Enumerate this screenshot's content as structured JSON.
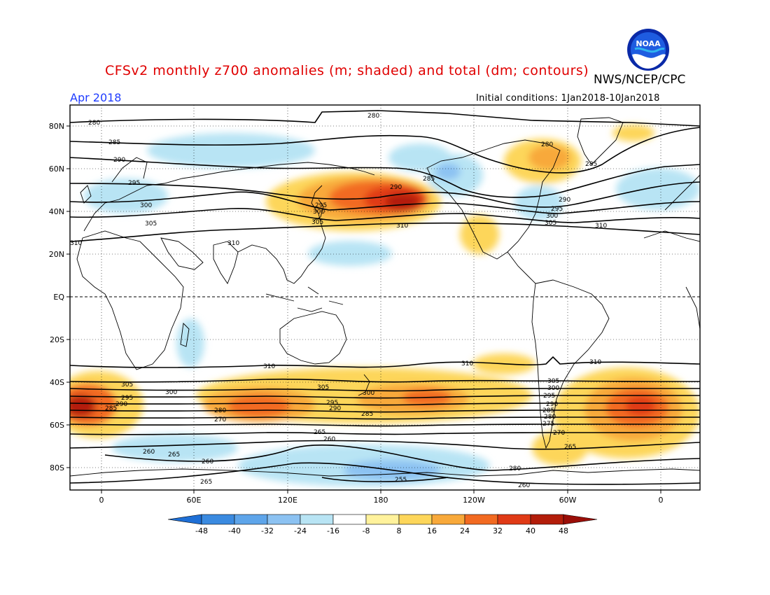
{
  "title": "CFSv2 monthly z700 anomalies (m; shaded) and total (dm; contours)",
  "org_label": "NWS/NCEP/CPC",
  "logo_text": "NOAA",
  "month_label": "Apr 2018",
  "init_label": "Initial conditions: 1Jan2018-10Jan2018",
  "lat_labels": [
    "80N",
    "60N",
    "40N",
    "20N",
    "EQ",
    "20S",
    "40S",
    "60S",
    "80S"
  ],
  "lon_labels": [
    "0",
    "60E",
    "120E",
    "180",
    "120W",
    "60W",
    "0"
  ],
  "colorbar": {
    "labels": [
      "-48",
      "-40",
      "-32",
      "-24",
      "-16",
      "-8",
      "8",
      "16",
      "24",
      "32",
      "40",
      "48"
    ],
    "colors": [
      "#1e6fd6",
      "#3a8ae0",
      "#5ea5ea",
      "#8cc2f2",
      "#b8e4f4",
      "#ffffff",
      "#fff29c",
      "#fdd65a",
      "#f8a93a",
      "#f26a21",
      "#e03a16",
      "#b31d0a",
      "#9a0e08"
    ]
  },
  "contour_labels": [
    "280",
    "285",
    "290",
    "295",
    "300",
    "305",
    "310",
    "265",
    "260",
    "255",
    "270",
    "275"
  ],
  "colors": {
    "title": "#e00000",
    "month": "#1f3cff",
    "frame": "#000000"
  }
}
